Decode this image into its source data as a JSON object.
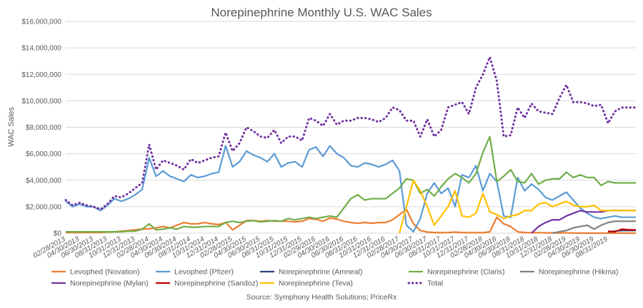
{
  "chart_data": {
    "type": "line",
    "title": "Norepinephrine Monthly U.S. WAC Sales",
    "ylabel": "WAC Sales",
    "xlabel": "",
    "source": "Source: Symphony Health Solutions; PriceRx",
    "ylim": [
      0,
      16000000
    ],
    "yticks": [
      0,
      2000000,
      4000000,
      6000000,
      8000000,
      10000000,
      12000000,
      14000000,
      16000000
    ],
    "ytick_labels": [
      "$0",
      "$2,000,000",
      "$4,000,000",
      "$6,000,000",
      "$8,000,000",
      "$10,000,000",
      "$12,000,000",
      "$14,000,000",
      "$16,000,000"
    ],
    "x_labels": [
      "02/28/2013",
      "04/30/2013",
      "06/30/2013",
      "08/31/2013",
      "10/31/2013",
      "12/31/2013",
      "02/28/2014",
      "04/30/2014",
      "06/30/2014",
      "08/31/2014",
      "10/31/2014",
      "12/31/2014",
      "02/28/2015",
      "04/30/2015",
      "06/30/2015",
      "08/31/2015",
      "10/31/2015",
      "12/31/2015",
      "02/29/2016",
      "04/30/2016",
      "06/30/2016",
      "08/31/2016",
      "10/31/2016",
      "12/31/2016",
      "02/28/2017",
      "04/30/2017",
      "06/30/2017",
      "08/31/2017",
      "10/31/2017",
      "12/31/2017",
      "02/28/2018",
      "04/30/2018",
      "06/30/2018",
      "08/31/2018",
      "10/31/2018",
      "12/31/2018",
      "02/28/2019",
      "04/30/2019",
      "06/30/2019",
      "08/31/2019"
    ],
    "grid": true,
    "legend_position": "bottom",
    "series": [
      {
        "name": "Levophed (Novation)",
        "color": "#ED7D31",
        "dash": "solid",
        "values": [
          50000,
          50000,
          50000,
          50000,
          50000,
          50000,
          80000,
          100000,
          150000,
          200000,
          250000,
          300000,
          330000,
          400000,
          500000,
          400000,
          600000,
          800000,
          700000,
          700000,
          800000,
          700000,
          650000,
          800000,
          250000,
          600000,
          950000,
          950000,
          900000,
          950000,
          900000,
          900000,
          900000,
          850000,
          900000,
          1100000,
          1050000,
          900000,
          1150000,
          1050000,
          900000,
          800000,
          750000,
          800000,
          750000,
          800000,
          800000,
          1000000,
          1400000,
          1800000,
          700000,
          200000,
          80000,
          50000,
          30000,
          50000,
          80000,
          50000,
          30000,
          30000,
          30000,
          100000,
          1200000,
          700000,
          500000,
          100000,
          50000,
          30000,
          30000,
          20000,
          20000,
          20000,
          20000,
          10000,
          0,
          0,
          0,
          0,
          0,
          0,
          0,
          0,
          0
        ]
      },
      {
        "name": "Levophed (Pfizer)",
        "color": "#5B9BD5",
        "dash": "solid",
        "values": [
          2400000,
          2000000,
          2200000,
          2000000,
          2000000,
          1700000,
          2100000,
          2600000,
          2400000,
          2600000,
          2900000,
          3300000,
          5700000,
          4300000,
          4700000,
          4300000,
          4100000,
          3900000,
          4400000,
          4200000,
          4300000,
          4500000,
          4600000,
          6600000,
          5000000,
          5400000,
          6200000,
          5900000,
          5700000,
          5400000,
          6000000,
          5000000,
          5300000,
          5400000,
          5000000,
          6300000,
          6500000,
          5800000,
          6600000,
          6000000,
          5700000,
          5100000,
          5000000,
          5300000,
          5200000,
          5000000,
          5200000,
          5500000,
          4700000,
          600000,
          100000,
          1100000,
          3000000,
          3800000,
          3000000,
          3400000,
          2000000,
          4400000,
          4200000,
          5100000,
          3200000,
          4500000,
          3900000,
          1300000,
          1200000,
          4200000,
          3200000,
          3700000,
          3300000,
          2700000,
          2500000,
          2800000,
          3100000,
          2500000,
          1900000,
          1500000,
          1200000,
          1100000,
          1200000,
          1300000,
          1200000,
          1200000,
          1200000
        ]
      },
      {
        "name": "Norepinephrine (Amneal)",
        "color": "#264478",
        "dash": "solid",
        "values": [
          null,
          null,
          null,
          null,
          null,
          null,
          null,
          null,
          null,
          null,
          null,
          null,
          null,
          null,
          null,
          null,
          null,
          null,
          null,
          null,
          null,
          null,
          null,
          null,
          null,
          null,
          null,
          null,
          null,
          null,
          null,
          null,
          null,
          null,
          null,
          null,
          null,
          null,
          null,
          null,
          null,
          null,
          null,
          null,
          null,
          null,
          null,
          null,
          null,
          null,
          null,
          null,
          null,
          null,
          null,
          null,
          null,
          null,
          null,
          null,
          null,
          null,
          null,
          null,
          null,
          null,
          null,
          null,
          null,
          null,
          null,
          null,
          null,
          null,
          null,
          null,
          null,
          null,
          100000,
          150000,
          200000,
          200000,
          200000
        ]
      },
      {
        "name": "Norepinephrine (Claris)",
        "color": "#70AD47",
        "dash": "solid",
        "values": [
          100000,
          100000,
          100000,
          100000,
          100000,
          100000,
          100000,
          100000,
          100000,
          150000,
          150000,
          300000,
          700000,
          250000,
          300000,
          400000,
          300000,
          500000,
          450000,
          450000,
          500000,
          500000,
          500000,
          800000,
          900000,
          800000,
          900000,
          950000,
          850000,
          900000,
          950000,
          900000,
          1100000,
          1000000,
          1100000,
          1200000,
          1100000,
          1200000,
          1300000,
          1200000,
          1900000,
          2600000,
          2900000,
          2500000,
          2600000,
          2600000,
          2600000,
          3000000,
          3400000,
          4100000,
          4000000,
          3000000,
          3300000,
          2800000,
          3500000,
          4100000,
          4500000,
          4200000,
          3800000,
          4500000,
          6100000,
          7300000,
          3900000,
          4300000,
          4800000,
          3900000,
          3800000,
          4500000,
          3700000,
          4000000,
          4100000,
          4100000,
          4600000,
          4200000,
          4400000,
          4200000,
          4200000,
          3600000,
          3900000,
          3800000,
          3800000,
          3800000,
          3800000
        ]
      },
      {
        "name": "Norepinephrine (Hikma)",
        "color": "#7F7F7F",
        "dash": "solid",
        "values": [
          null,
          null,
          null,
          null,
          null,
          null,
          null,
          null,
          null,
          null,
          null,
          null,
          null,
          null,
          null,
          null,
          null,
          null,
          null,
          null,
          null,
          null,
          null,
          null,
          null,
          null,
          null,
          null,
          null,
          null,
          null,
          null,
          null,
          null,
          null,
          null,
          null,
          null,
          null,
          null,
          null,
          null,
          null,
          null,
          null,
          null,
          null,
          null,
          null,
          null,
          null,
          null,
          null,
          null,
          null,
          null,
          null,
          null,
          null,
          null,
          null,
          null,
          null,
          null,
          null,
          null,
          null,
          null,
          null,
          null,
          0,
          100000,
          200000,
          400000,
          500000,
          600000,
          300000,
          600000,
          800000,
          900000,
          900000,
          900000,
          900000
        ]
      },
      {
        "name": "Norepinephrine (Mylan)",
        "color": "#7030A0",
        "dash": "solid",
        "values": [
          null,
          null,
          null,
          null,
          null,
          null,
          null,
          null,
          null,
          null,
          null,
          null,
          null,
          null,
          null,
          null,
          null,
          null,
          null,
          null,
          null,
          null,
          null,
          null,
          null,
          null,
          null,
          null,
          null,
          null,
          null,
          null,
          null,
          null,
          null,
          null,
          null,
          null,
          null,
          null,
          null,
          null,
          null,
          null,
          null,
          null,
          null,
          null,
          null,
          null,
          null,
          null,
          null,
          null,
          null,
          null,
          null,
          null,
          null,
          null,
          null,
          null,
          null,
          null,
          null,
          null,
          null,
          0,
          500000,
          800000,
          1000000,
          1000000,
          1300000,
          1500000,
          1700000,
          1600000,
          1600000,
          1600000,
          1700000,
          1700000,
          1700000,
          1700000,
          1700000
        ]
      },
      {
        "name": "Norepinephrine (Sandoz)",
        "color": "#C00000",
        "dash": "solid",
        "values": [
          null,
          null,
          null,
          null,
          null,
          null,
          null,
          null,
          null,
          null,
          null,
          null,
          null,
          null,
          null,
          null,
          null,
          null,
          null,
          null,
          null,
          null,
          null,
          null,
          null,
          null,
          null,
          null,
          null,
          null,
          null,
          null,
          null,
          null,
          null,
          null,
          null,
          null,
          null,
          null,
          null,
          null,
          null,
          null,
          null,
          null,
          null,
          null,
          null,
          null,
          null,
          null,
          null,
          null,
          null,
          null,
          null,
          null,
          null,
          null,
          null,
          null,
          null,
          null,
          null,
          null,
          null,
          null,
          null,
          null,
          null,
          null,
          null,
          null,
          null,
          null,
          null,
          null,
          150000,
          100000,
          300000,
          250000,
          250000
        ]
      },
      {
        "name": "Norepinephrine (Teva)",
        "color": "#FFC000",
        "dash": "solid",
        "values": [
          null,
          null,
          null,
          null,
          null,
          null,
          null,
          null,
          null,
          null,
          null,
          null,
          null,
          null,
          null,
          null,
          null,
          null,
          null,
          null,
          null,
          null,
          null,
          null,
          null,
          null,
          null,
          null,
          null,
          null,
          null,
          null,
          null,
          null,
          null,
          null,
          null,
          null,
          null,
          null,
          null,
          null,
          null,
          null,
          null,
          null,
          null,
          null,
          0,
          2000000,
          4000000,
          3200000,
          2000000,
          600000,
          1300000,
          2000000,
          3200000,
          1300000,
          1200000,
          1500000,
          3000000,
          1600000,
          1400000,
          1100000,
          1300000,
          1400000,
          1700000,
          1700000,
          2200000,
          2300000,
          2000000,
          2200000,
          2400000,
          2100000,
          2000000,
          2000000,
          2100000,
          1700000,
          1700000,
          1700000,
          1700000,
          1700000,
          1700000
        ]
      },
      {
        "name": "Total",
        "color": "#7030A0",
        "dash": "dotted",
        "values": [
          2500000,
          2100000,
          2300000,
          2100000,
          2000000,
          1800000,
          2200000,
          2800000,
          2700000,
          3000000,
          3400000,
          3800000,
          6700000,
          4800000,
          5500000,
          5300000,
          5100000,
          4800000,
          5600000,
          5300000,
          5500000,
          5700000,
          5800000,
          7600000,
          6200000,
          6800000,
          8000000,
          7700000,
          7300000,
          7200000,
          7800000,
          6800000,
          7300000,
          7300000,
          7000000,
          8700000,
          8500000,
          8100000,
          9000000,
          8200000,
          8500000,
          8500000,
          8700000,
          8700000,
          8600000,
          8400000,
          8700000,
          9500000,
          9300000,
          8500000,
          8500000,
          7300000,
          8600000,
          7300000,
          7800000,
          9500000,
          9700000,
          9900000,
          9000000,
          11000000,
          12000000,
          13300000,
          11500000,
          7300000,
          7400000,
          9500000,
          8700000,
          9800000,
          9200000,
          9100000,
          9000000,
          10200000,
          11200000,
          9900000,
          9900000,
          9800000,
          9600000,
          9700000,
          8300000,
          9200000,
          9500000,
          9500000,
          9500000
        ]
      }
    ]
  }
}
